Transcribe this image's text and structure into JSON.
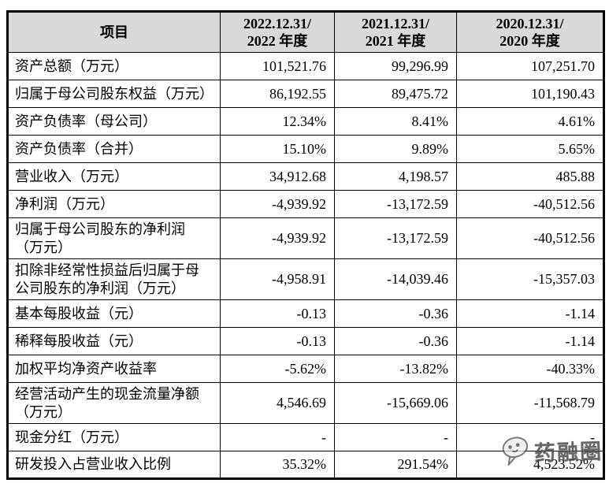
{
  "table": {
    "columns": [
      {
        "label": "项目"
      },
      {
        "label": "2022.12.31/\n2022 年度"
      },
      {
        "label": "2021.12.31/\n2021 年度"
      },
      {
        "label": "2020.12.31/\n2020 年度"
      }
    ],
    "rows": [
      {
        "label": "资产总额（万元）",
        "values": [
          "101,521.76",
          "99,296.99",
          "107,251.70"
        ]
      },
      {
        "label": "归属于母公司股东权益（万元）",
        "values": [
          "86,192.55",
          "89,475.72",
          "101,190.43"
        ]
      },
      {
        "label": "资产负债率（母公司）",
        "values": [
          "12.34%",
          "8.41%",
          "4.61%"
        ]
      },
      {
        "label": "资产负债率（合并）",
        "values": [
          "15.10%",
          "9.89%",
          "5.65%"
        ]
      },
      {
        "label": "营业收入（万元）",
        "values": [
          "34,912.68",
          "4,198.57",
          "485.88"
        ]
      },
      {
        "label": "净利润（万元）",
        "values": [
          "-4,939.92",
          "-13,172.59",
          "-40,512.56"
        ]
      },
      {
        "label": "归属于母公司股东的净利润\n（万元）",
        "values": [
          "-4,939.92",
          "-13,172.59",
          "-40,512.56"
        ]
      },
      {
        "label": "扣除非经常性损益后归属于母\n公司股东的净利润（万元）",
        "values": [
          "-4,958.91",
          "-14,039.46",
          "-15,357.03"
        ]
      },
      {
        "label": "基本每股收益（元）",
        "values": [
          "-0.13",
          "-0.36",
          "-1.14"
        ]
      },
      {
        "label": "稀释每股收益（元）",
        "values": [
          "-0.13",
          "-0.36",
          "-1.14"
        ]
      },
      {
        "label": "加权平均净资产收益率",
        "values": [
          "-5.62%",
          "-13.82%",
          "-40.33%"
        ]
      },
      {
        "label": "经营活动产生的现金流量净额\n（万元）",
        "values": [
          "4,546.69",
          "-15,669.06",
          "-11,568.79"
        ]
      },
      {
        "label": "现金分红（万元）",
        "values": [
          "-",
          "-",
          "-"
        ]
      },
      {
        "label": "研发投入占营业收入比例",
        "values": [
          "35.32%",
          "291.54%",
          "4,523.52%"
        ]
      }
    ]
  },
  "watermark": {
    "text": "药融圈"
  },
  "colors": {
    "header_bg": "#d9d9d9",
    "border": "#000000",
    "text": "#000000",
    "watermark_gray": "#474747"
  }
}
